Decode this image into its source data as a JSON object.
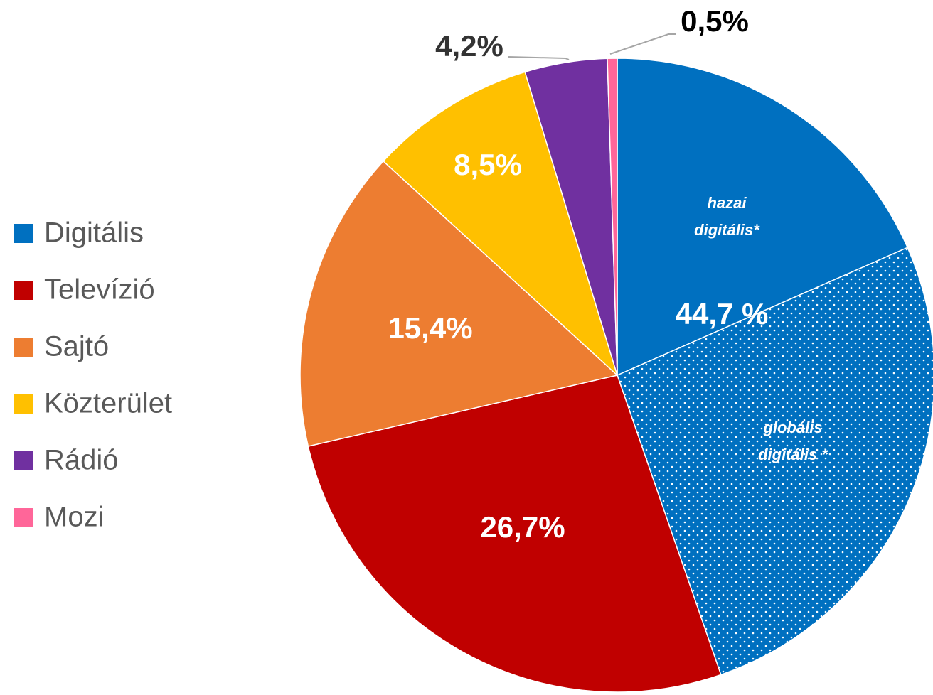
{
  "chart_data": {
    "type": "pie",
    "categories": [
      "Digitális",
      "Televízió",
      "Sajtó",
      "Közterület",
      "Rádió",
      "Mozi"
    ],
    "values": [
      44.7,
      26.7,
      15.4,
      8.5,
      4.2,
      0.5
    ],
    "value_labels": [
      "44,7 %",
      "26,7%",
      "15,4%",
      "8,5%",
      "4,2%",
      "0,5%"
    ],
    "colors": [
      "#0070c0",
      "#c00000",
      "#ed7d31",
      "#ffc000",
      "#7030a0",
      "#ff6699"
    ],
    "sub_slices": [
      {
        "label": "hazai digitális*",
        "value": 18.4
      },
      {
        "label": "globális digitális *",
        "value": 26.3
      }
    ],
    "legend": "left"
  }
}
